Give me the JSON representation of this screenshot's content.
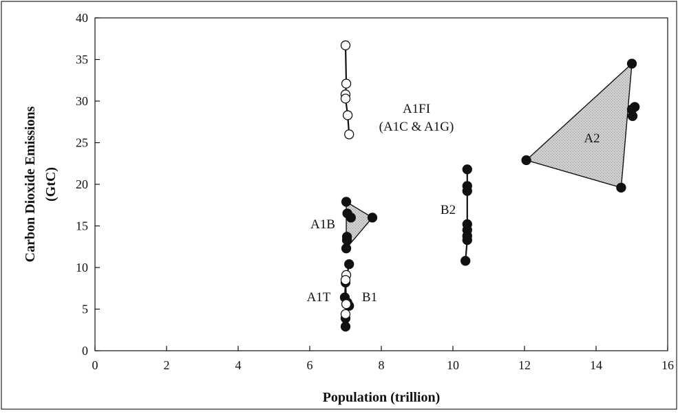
{
  "chart_data": {
    "type": "scatter",
    "title": "",
    "xlabel": "Population (trillion)",
    "ylabel_lines": [
      "Carbon Dioxide Emissions",
      "(GtC)"
    ],
    "xlim": [
      0,
      16
    ],
    "ylim": [
      0,
      40
    ],
    "x_ticks": [
      "0",
      "2",
      "4",
      "6",
      "8",
      "10",
      "12",
      "14",
      "16"
    ],
    "y_ticks": [
      "0",
      "5",
      "10",
      "15",
      "20",
      "25",
      "30",
      "35",
      "40"
    ],
    "grid": false,
    "groups": [
      {
        "label_lines": [
          "A1FI",
          "(A1C & A1G)"
        ],
        "marker": "open",
        "line": true,
        "area": false,
        "points": [
          [
            7.0,
            36.7
          ],
          [
            7.02,
            32.1
          ],
          [
            7.0,
            30.8
          ],
          [
            7.0,
            30.3
          ],
          [
            7.06,
            28.3
          ],
          [
            7.1,
            26.0
          ]
        ]
      },
      {
        "label_lines": [
          "A1B"
        ],
        "marker": "filled",
        "line": true,
        "area": true,
        "polygon": [
          [
            7.02,
            17.9
          ],
          [
            7.75,
            16.0
          ],
          [
            7.02,
            12.3
          ]
        ],
        "points": [
          [
            7.02,
            17.9
          ],
          [
            7.05,
            16.5
          ],
          [
            7.15,
            16.0
          ],
          [
            7.75,
            16.0
          ],
          [
            7.04,
            13.7
          ],
          [
            7.04,
            13.3
          ],
          [
            7.02,
            12.3
          ]
        ]
      },
      {
        "label_lines": [
          "A1T"
        ],
        "marker": "open",
        "line": true,
        "area": false,
        "points": [
          [
            7.02,
            9.1
          ],
          [
            7.0,
            8.5
          ],
          [
            7.02,
            5.6
          ],
          [
            7.0,
            4.4
          ]
        ]
      },
      {
        "label_lines": [
          "B1"
        ],
        "marker": "filled",
        "line": true,
        "area": false,
        "points": [
          [
            7.1,
            10.4
          ],
          [
            7.0,
            8.2
          ],
          [
            6.98,
            6.4
          ],
          [
            7.05,
            5.8
          ],
          [
            7.1,
            5.4
          ],
          [
            7.0,
            3.9
          ],
          [
            7.0,
            2.9
          ]
        ]
      },
      {
        "label_lines": [
          "B2"
        ],
        "marker": "filled",
        "line": true,
        "area": false,
        "points": [
          [
            10.4,
            21.8
          ],
          [
            10.4,
            19.8
          ],
          [
            10.4,
            19.2
          ],
          [
            10.4,
            15.2
          ],
          [
            10.4,
            14.5
          ],
          [
            10.4,
            13.8
          ],
          [
            10.4,
            13.3
          ],
          [
            10.35,
            10.8
          ]
        ]
      },
      {
        "label_lines": [
          "A2"
        ],
        "marker": "filled",
        "line": true,
        "area": true,
        "polygon": [
          [
            12.05,
            22.9
          ],
          [
            15.0,
            34.5
          ],
          [
            14.7,
            19.6
          ]
        ],
        "points": [
          [
            15.0,
            34.5
          ],
          [
            15.08,
            29.3
          ],
          [
            15.0,
            29.0
          ],
          [
            15.02,
            28.2
          ],
          [
            12.05,
            22.9
          ],
          [
            14.7,
            19.6
          ]
        ]
      }
    ]
  }
}
